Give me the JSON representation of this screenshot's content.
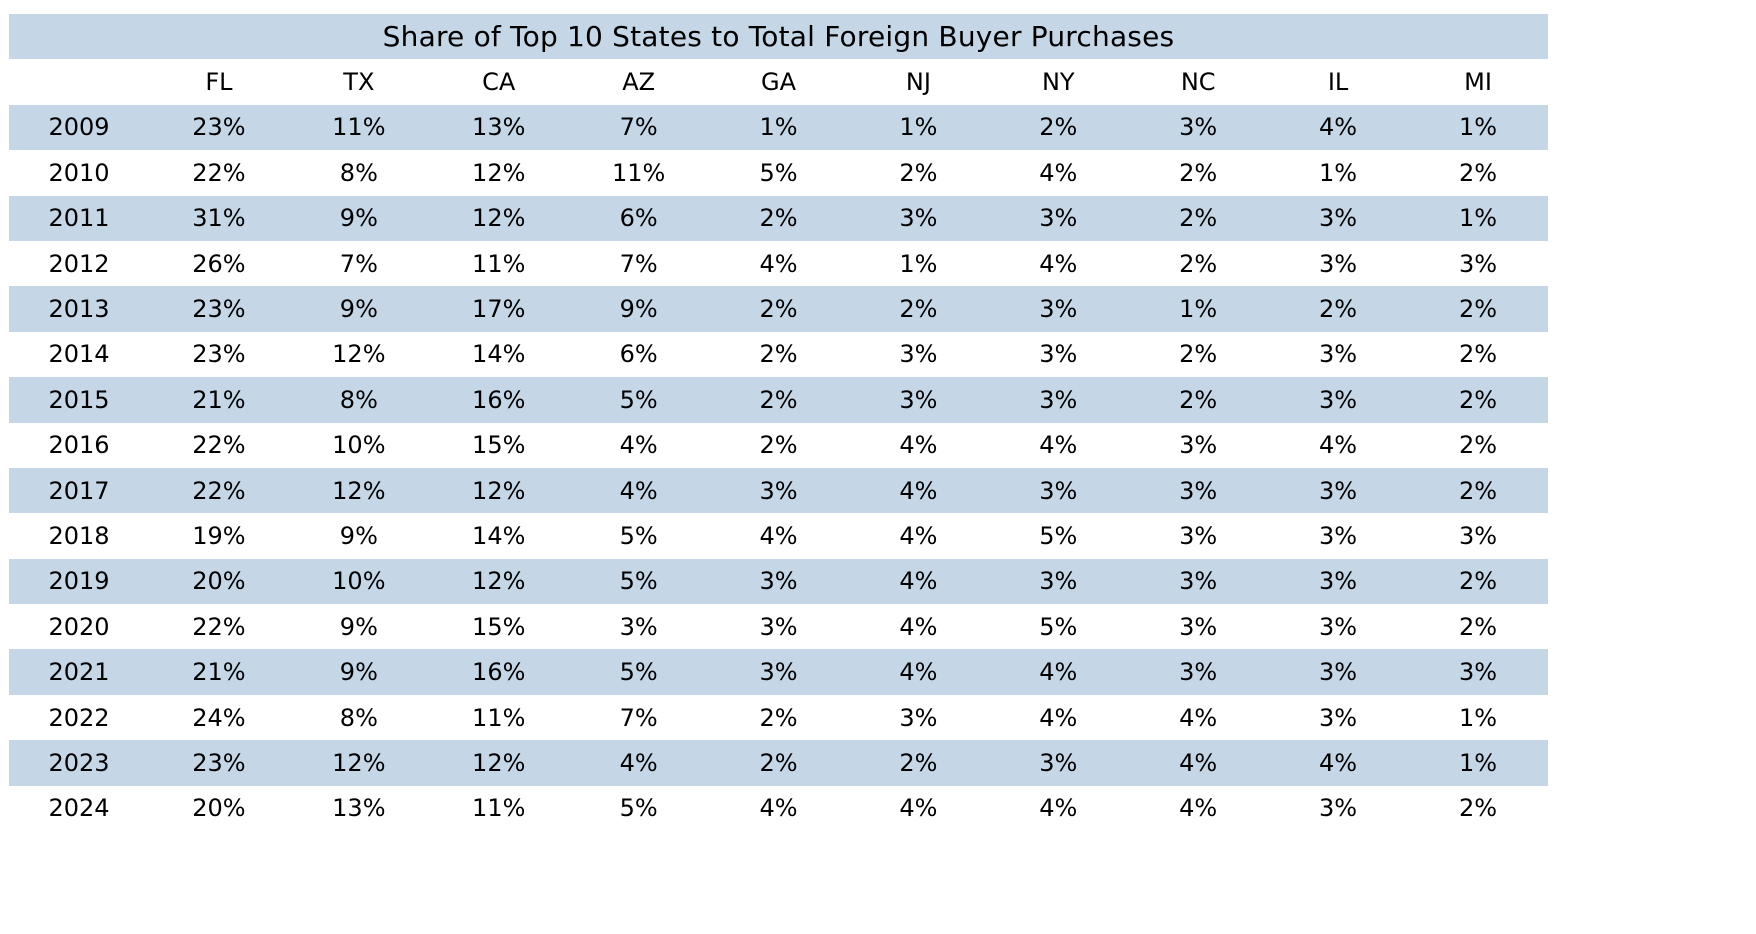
{
  "colors": {
    "band": "#c5d6e7",
    "background": "#ffffff",
    "text": "#000000"
  },
  "chart_data": {
    "type": "table",
    "title": "Share of Top 10 States to Total Foreign Buyer Purchases",
    "columns": [
      "",
      "FL",
      "TX",
      "CA",
      "AZ",
      "GA",
      "NJ",
      "NY",
      "NC",
      "IL",
      "MI"
    ],
    "rows": [
      [
        "2009",
        "23%",
        "11%",
        "13%",
        "7%",
        "1%",
        "1%",
        "2%",
        "3%",
        "4%",
        "1%"
      ],
      [
        "2010",
        "22%",
        "8%",
        "12%",
        "11%",
        "5%",
        "2%",
        "4%",
        "2%",
        "1%",
        "2%"
      ],
      [
        "2011",
        "31%",
        "9%",
        "12%",
        "6%",
        "2%",
        "3%",
        "3%",
        "2%",
        "3%",
        "1%"
      ],
      [
        "2012",
        "26%",
        "7%",
        "11%",
        "7%",
        "4%",
        "1%",
        "4%",
        "2%",
        "3%",
        "3%"
      ],
      [
        "2013",
        "23%",
        "9%",
        "17%",
        "9%",
        "2%",
        "2%",
        "3%",
        "1%",
        "2%",
        "2%"
      ],
      [
        "2014",
        "23%",
        "12%",
        "14%",
        "6%",
        "2%",
        "3%",
        "3%",
        "2%",
        "3%",
        "2%"
      ],
      [
        "2015",
        "21%",
        "8%",
        "16%",
        "5%",
        "2%",
        "3%",
        "3%",
        "2%",
        "3%",
        "2%"
      ],
      [
        "2016",
        "22%",
        "10%",
        "15%",
        "4%",
        "2%",
        "4%",
        "4%",
        "3%",
        "4%",
        "2%"
      ],
      [
        "2017",
        "22%",
        "12%",
        "12%",
        "4%",
        "3%",
        "4%",
        "3%",
        "3%",
        "3%",
        "2%"
      ],
      [
        "2018",
        "19%",
        "9%",
        "14%",
        "5%",
        "4%",
        "4%",
        "5%",
        "3%",
        "3%",
        "3%"
      ],
      [
        "2019",
        "20%",
        "10%",
        "12%",
        "5%",
        "3%",
        "4%",
        "3%",
        "3%",
        "3%",
        "2%"
      ],
      [
        "2020",
        "22%",
        "9%",
        "15%",
        "3%",
        "3%",
        "4%",
        "5%",
        "3%",
        "3%",
        "2%"
      ],
      [
        "2021",
        "21%",
        "9%",
        "16%",
        "5%",
        "3%",
        "4%",
        "4%",
        "3%",
        "3%",
        "3%"
      ],
      [
        "2022",
        "24%",
        "8%",
        "11%",
        "7%",
        "2%",
        "3%",
        "4%",
        "4%",
        "3%",
        "1%"
      ],
      [
        "2023",
        "23%",
        "12%",
        "12%",
        "4%",
        "2%",
        "2%",
        "3%",
        "4%",
        "4%",
        "1%"
      ],
      [
        "2024",
        "20%",
        "13%",
        "11%",
        "5%",
        "4%",
        "4%",
        "4%",
        "4%",
        "3%",
        "2%"
      ]
    ]
  }
}
